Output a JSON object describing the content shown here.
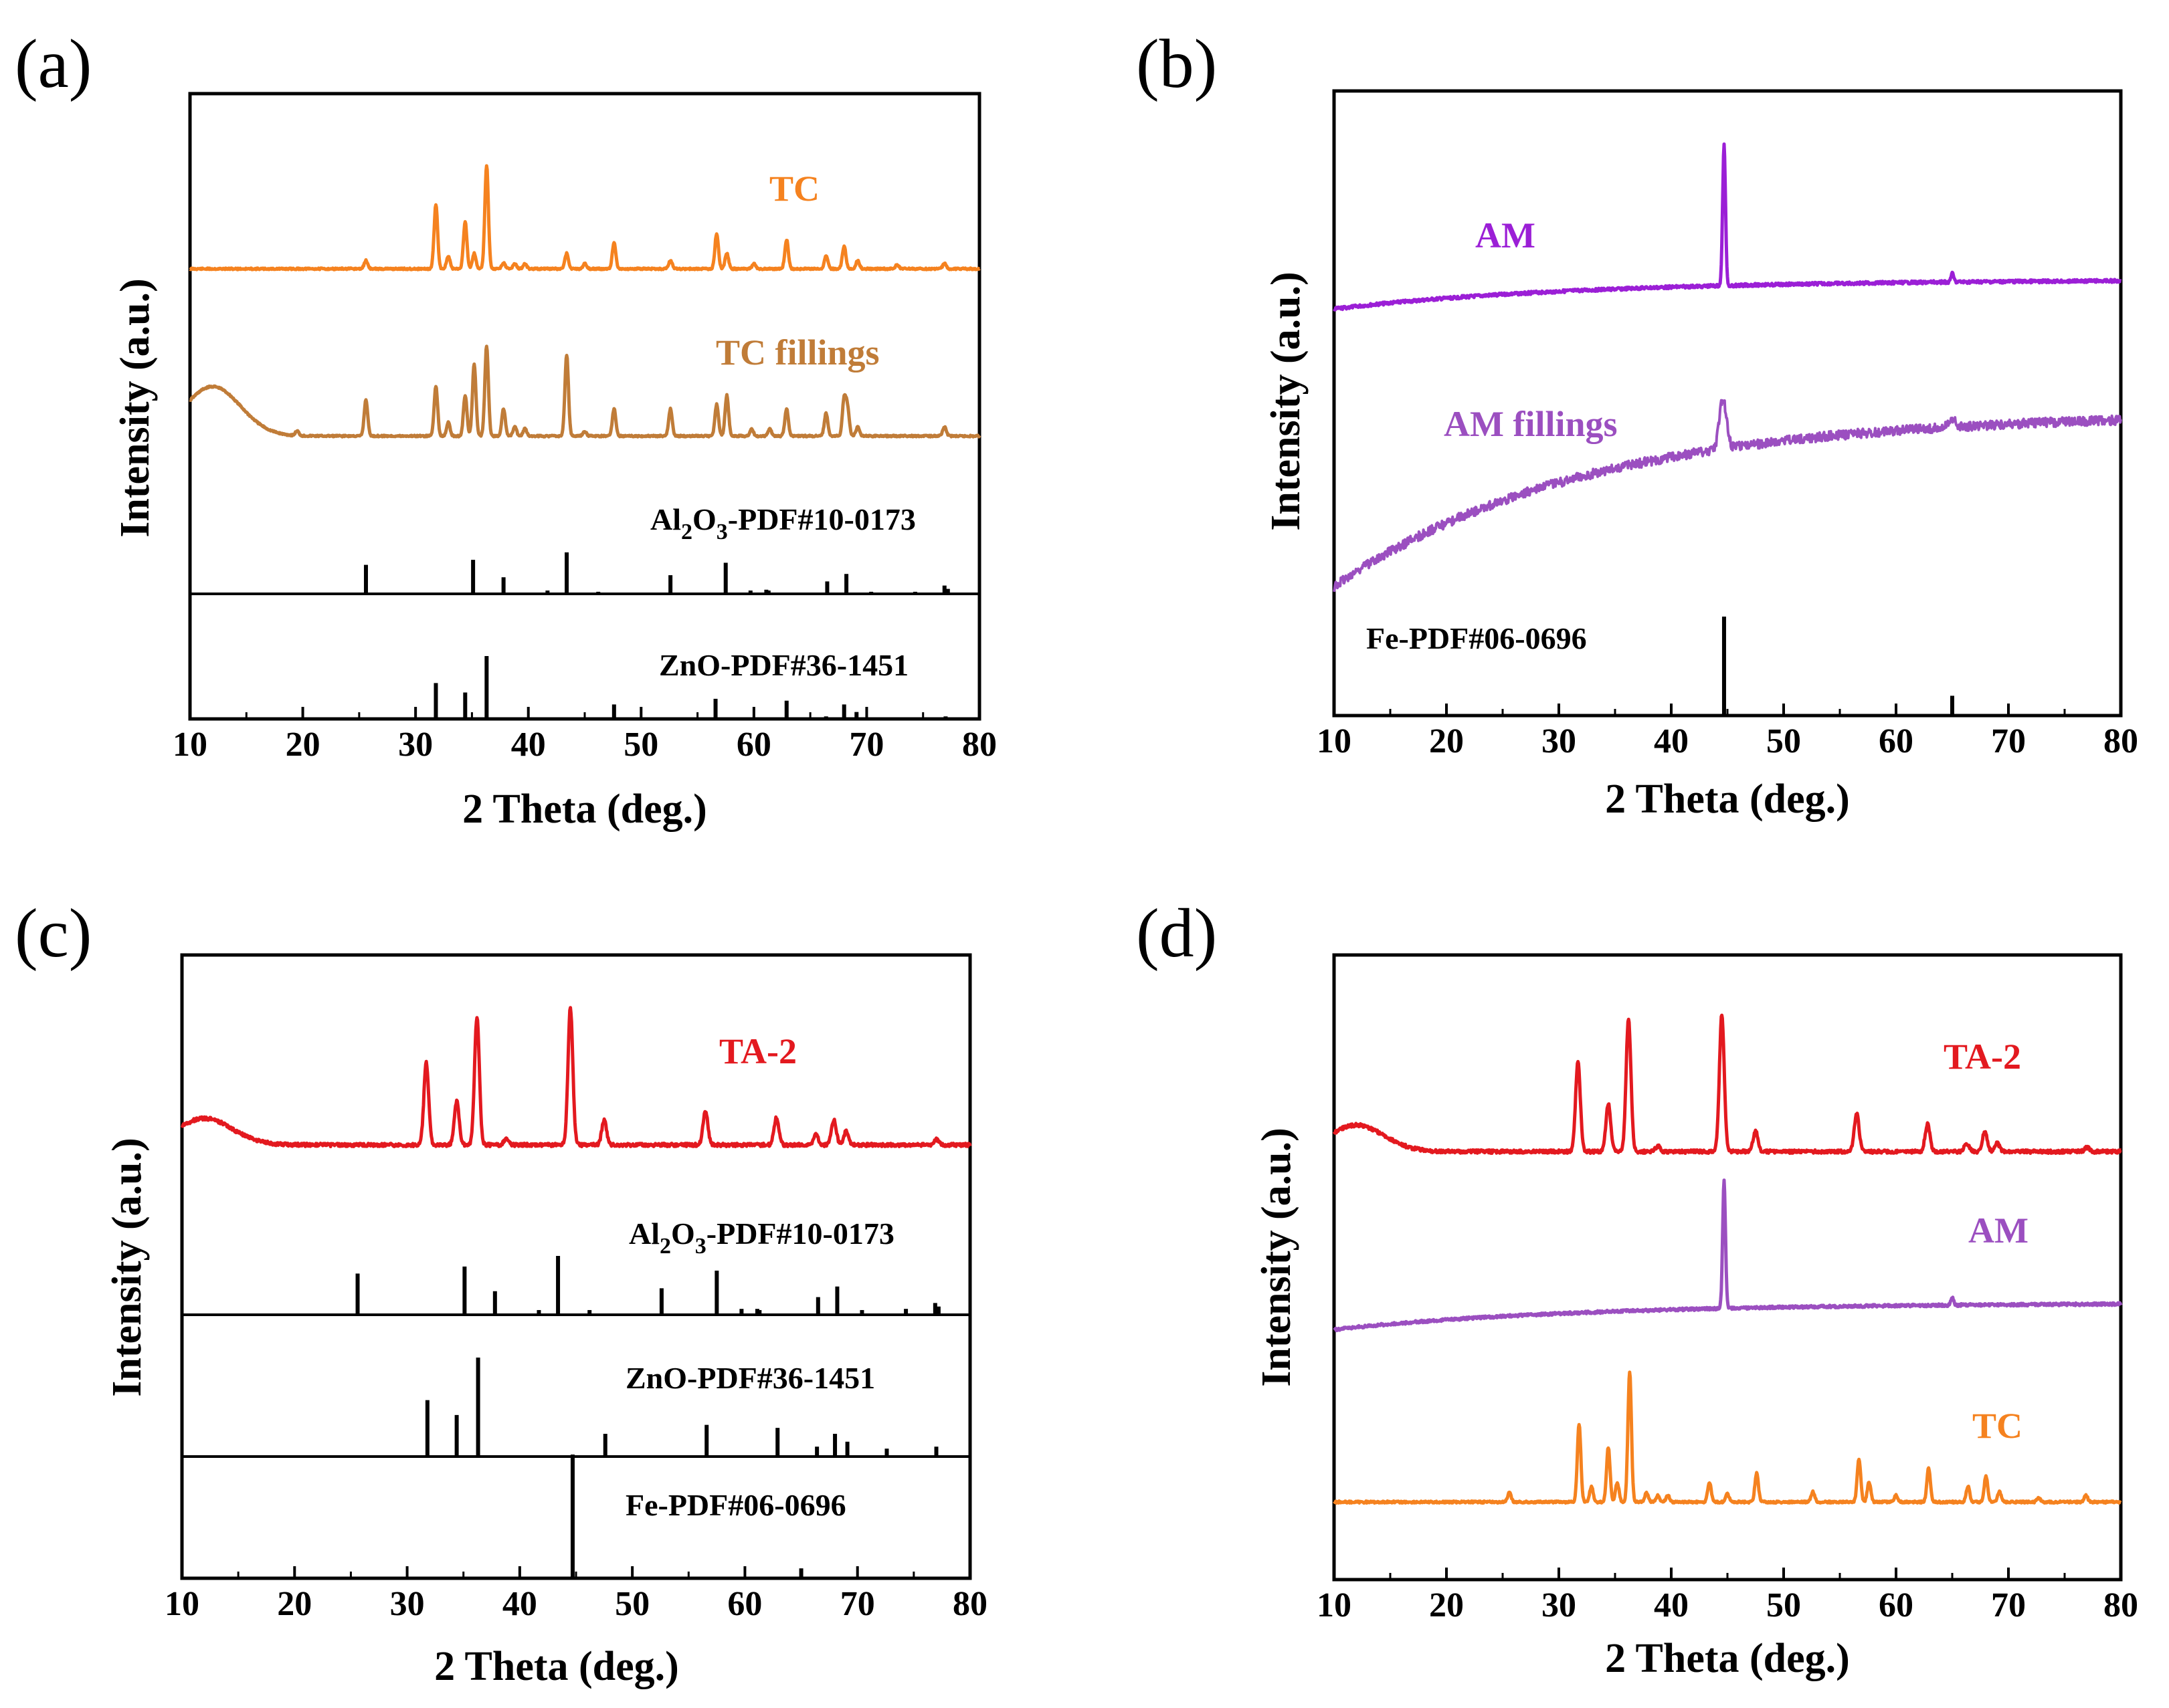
{
  "chart_data": [
    {
      "panel": "(a)",
      "type": "line",
      "xlabel": "2 Theta (deg.)",
      "ylabel": "Intensity (a.u.)",
      "xlim": [
        10,
        80
      ],
      "xticks": [
        "10",
        "20",
        "30",
        "40",
        "50",
        "60",
        "70",
        "80"
      ],
      "series": [
        {
          "name": "TC",
          "color": "#f5821f",
          "peaks": [
            [
              25.6,
              0.08
            ],
            [
              31.8,
              0.62
            ],
            [
              32.9,
              0.12
            ],
            [
              34.4,
              0.45
            ],
            [
              35.2,
              0.15
            ],
            [
              36.3,
              1.0
            ],
            [
              37.8,
              0.06
            ],
            [
              38.8,
              0.05
            ],
            [
              39.7,
              0.05
            ],
            [
              43.4,
              0.15
            ],
            [
              45.0,
              0.05
            ],
            [
              47.6,
              0.25
            ],
            [
              52.6,
              0.08
            ],
            [
              56.7,
              0.34
            ],
            [
              57.6,
              0.15
            ],
            [
              60.0,
              0.05
            ],
            [
              62.9,
              0.28
            ],
            [
              66.4,
              0.12
            ],
            [
              68.0,
              0.22
            ],
            [
              69.2,
              0.08
            ],
            [
              72.7,
              0.04
            ],
            [
              76.9,
              0.05
            ]
          ],
          "background": {
            "hump": 0,
            "slope": 0
          }
        },
        {
          "name": "TC fillings",
          "color": "#c07c38",
          "peaks": [
            [
              19.5,
              0.05
            ],
            [
              25.6,
              0.4
            ],
            [
              31.8,
              0.55
            ],
            [
              32.9,
              0.15
            ],
            [
              34.4,
              0.45
            ],
            [
              35.2,
              0.8
            ],
            [
              36.3,
              1.0
            ],
            [
              37.8,
              0.3
            ],
            [
              38.8,
              0.1
            ],
            [
              39.7,
              0.08
            ],
            [
              43.4,
              0.9
            ],
            [
              45.0,
              0.05
            ],
            [
              47.6,
              0.3
            ],
            [
              52.6,
              0.3
            ],
            [
              56.7,
              0.35
            ],
            [
              57.6,
              0.45
            ],
            [
              59.8,
              0.08
            ],
            [
              61.4,
              0.08
            ],
            [
              62.9,
              0.3
            ],
            [
              66.4,
              0.25
            ],
            [
              68.0,
              0.4
            ],
            [
              68.3,
              0.3
            ],
            [
              69.2,
              0.1
            ],
            [
              76.9,
              0.1
            ]
          ],
          "background": {
            "hump": 0.28,
            "slope": 0
          }
        }
      ],
      "references": [
        {
          "name": "Al2O3-PDF#10-0173",
          "label_main": "Al",
          "sub1": "2",
          "label_mid": "O",
          "sub2": "3",
          "label_end": "-PDF#10-0173",
          "lines": [
            [
              25.6,
              0.7
            ],
            [
              35.1,
              0.82
            ],
            [
              37.8,
              0.4
            ],
            [
              41.7,
              0.08
            ],
            [
              43.4,
              1.0
            ],
            [
              46.2,
              0.05
            ],
            [
              52.6,
              0.45
            ],
            [
              57.5,
              0.75
            ],
            [
              59.7,
              0.08
            ],
            [
              61.1,
              0.1
            ],
            [
              61.3,
              0.08
            ],
            [
              66.5,
              0.3
            ],
            [
              68.2,
              0.48
            ],
            [
              70.4,
              0.05
            ],
            [
              74.3,
              0.05
            ],
            [
              76.9,
              0.2
            ],
            [
              77.2,
              0.12
            ]
          ]
        },
        {
          "name": "ZnO-PDF#36-1451",
          "label": "ZnO-PDF#36-1451",
          "lines": [
            [
              31.8,
              0.57
            ],
            [
              34.4,
              0.42
            ],
            [
              36.3,
              1.0
            ],
            [
              47.6,
              0.23
            ],
            [
              56.6,
              0.32
            ],
            [
              62.9,
              0.29
            ],
            [
              66.4,
              0.04
            ],
            [
              68.0,
              0.23
            ],
            [
              69.1,
              0.11
            ],
            [
              72.6,
              0.02
            ],
            [
              77.0,
              0.04
            ]
          ]
        }
      ]
    },
    {
      "panel": "(b)",
      "type": "line",
      "xlabel": "2 Theta (deg.)",
      "ylabel": "Intensity (a.u.)",
      "xlim": [
        10,
        80
      ],
      "xticks": [
        "10",
        "20",
        "30",
        "40",
        "50",
        "60",
        "70",
        "80"
      ],
      "series": [
        {
          "name": "AM",
          "color": "#9b1fd6",
          "peaks": [
            [
              44.7,
              1.0
            ],
            [
              65.0,
              0.06
            ]
          ],
          "background": {
            "rise": 0.14
          }
        },
        {
          "name": "AM fillings",
          "color": "#9b4fc0",
          "peaks": [
            [
              44.6,
              0.5
            ],
            [
              65.0,
              0.08
            ]
          ],
          "background": {
            "rise": 0.85
          }
        }
      ],
      "references": [
        {
          "name": "Fe-PDF#06-0696",
          "label": "Fe-PDF#06-0696",
          "lines": [
            [
              44.7,
              1.0
            ],
            [
              65.0,
              0.2
            ]
          ]
        }
      ]
    },
    {
      "panel": "(c)",
      "type": "line",
      "xlabel": "2 Theta (deg.)",
      "ylabel": "Intensity (a.u.)",
      "xlim": [
        10,
        80
      ],
      "xticks": [
        "10",
        "20",
        "30",
        "40",
        "50",
        "60",
        "70",
        "80"
      ],
      "series": [
        {
          "name": "TA-2",
          "color": "#e3191f",
          "peaks": [
            [
              31.7,
              0.6
            ],
            [
              34.4,
              0.32
            ],
            [
              36.2,
              0.93
            ],
            [
              38.8,
              0.04
            ],
            [
              44.5,
              1.0
            ],
            [
              47.5,
              0.18
            ],
            [
              56.5,
              0.25
            ],
            [
              62.8,
              0.2
            ],
            [
              66.3,
              0.08
            ],
            [
              67.9,
              0.18
            ],
            [
              69.0,
              0.1
            ],
            [
              77.0,
              0.04
            ]
          ],
          "background": {
            "hump": 0.3
          }
        }
      ],
      "references": [
        {
          "name": "Al2O3-PDF#10-0173",
          "label_main": "Al",
          "sub1": "2",
          "label_mid": "O",
          "sub2": "3",
          "label_end": "-PDF#10-0173",
          "lines": [
            [
              25.6,
              0.7
            ],
            [
              35.1,
              0.82
            ],
            [
              37.8,
              0.4
            ],
            [
              41.7,
              0.08
            ],
            [
              43.4,
              1.0
            ],
            [
              46.2,
              0.08
            ],
            [
              52.6,
              0.45
            ],
            [
              57.5,
              0.75
            ],
            [
              59.7,
              0.1
            ],
            [
              61.1,
              0.1
            ],
            [
              61.3,
              0.08
            ],
            [
              66.5,
              0.3
            ],
            [
              68.2,
              0.48
            ],
            [
              70.4,
              0.08
            ],
            [
              74.3,
              0.1
            ],
            [
              76.9,
              0.2
            ],
            [
              77.2,
              0.14
            ]
          ]
        },
        {
          "name": "ZnO-PDF#36-1451",
          "label": "ZnO-PDF#36-1451",
          "lines": [
            [
              31.8,
              0.57
            ],
            [
              34.4,
              0.42
            ],
            [
              36.3,
              1.0
            ],
            [
              47.6,
              0.23
            ],
            [
              56.6,
              0.32
            ],
            [
              62.9,
              0.29
            ],
            [
              66.4,
              0.1
            ],
            [
              68.0,
              0.23
            ],
            [
              69.1,
              0.15
            ],
            [
              72.6,
              0.08
            ],
            [
              77.0,
              0.1
            ]
          ]
        },
        {
          "name": "Fe-PDF#06-0696",
          "label": "Fe-PDF#06-0696",
          "lines": [
            [
              44.7,
              1.0
            ],
            [
              65.0,
              0.08
            ]
          ]
        }
      ]
    },
    {
      "panel": "(d)",
      "type": "line",
      "xlabel": "2 Theta (deg.)",
      "ylabel": "Intensity (a.u.)",
      "xlim": [
        10,
        80
      ],
      "xticks": [
        "10",
        "20",
        "30",
        "40",
        "50",
        "60",
        "70",
        "80"
      ],
      "series": [
        {
          "name": "TA-2",
          "color": "#e3191f",
          "peaks": [
            [
              31.7,
              0.65
            ],
            [
              34.4,
              0.35
            ],
            [
              36.2,
              0.97
            ],
            [
              38.8,
              0.04
            ],
            [
              44.5,
              1.0
            ],
            [
              47.5,
              0.15
            ],
            [
              56.5,
              0.28
            ],
            [
              62.8,
              0.2
            ],
            [
              66.3,
              0.06
            ],
            [
              67.9,
              0.15
            ],
            [
              69.0,
              0.06
            ],
            [
              77.0,
              0.03
            ]
          ],
          "background": {
            "hump": 0.3
          }
        },
        {
          "name": "AM",
          "color": "#9b4fc0",
          "peaks": [
            [
              44.7,
              1.0
            ],
            [
              65.0,
              0.06
            ]
          ],
          "background": {
            "rise": 0.14
          }
        },
        {
          "name": "TC",
          "color": "#f5821f",
          "peaks": [
            [
              25.6,
              0.07
            ],
            [
              31.8,
              0.6
            ],
            [
              32.9,
              0.12
            ],
            [
              34.4,
              0.42
            ],
            [
              35.2,
              0.15
            ],
            [
              36.3,
              1.0
            ],
            [
              37.8,
              0.07
            ],
            [
              38.8,
              0.05
            ],
            [
              39.7,
              0.05
            ],
            [
              43.4,
              0.15
            ],
            [
              45.0,
              0.06
            ],
            [
              47.6,
              0.22
            ],
            [
              52.6,
              0.08
            ],
            [
              56.7,
              0.33
            ],
            [
              57.6,
              0.15
            ],
            [
              60.0,
              0.05
            ],
            [
              62.9,
              0.26
            ],
            [
              66.4,
              0.12
            ],
            [
              68.0,
              0.2
            ],
            [
              69.2,
              0.08
            ],
            [
              72.7,
              0.03
            ],
            [
              76.9,
              0.05
            ]
          ],
          "background": {
            "hump": 0,
            "slope": 0
          }
        }
      ],
      "references": []
    }
  ]
}
